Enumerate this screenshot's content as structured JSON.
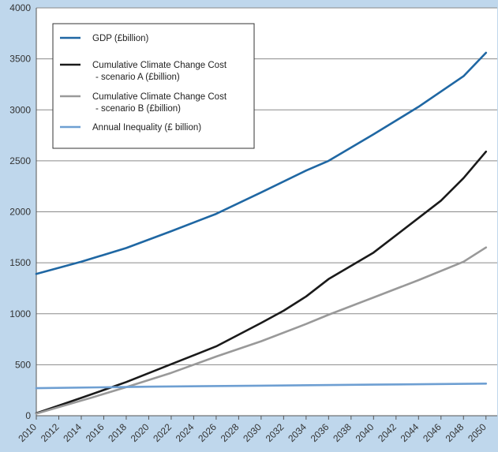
{
  "chart_data": {
    "type": "line",
    "title": "",
    "xlabel": "",
    "ylabel": "",
    "xlim": [
      2010,
      2051
    ],
    "ylim": [
      0,
      4000
    ],
    "x_ticks": [
      "2010",
      "2012",
      "2014",
      "2016",
      "2018",
      "2020",
      "2022",
      "2024",
      "2026",
      "2028",
      "2030",
      "2032",
      "2034",
      "2036",
      "2038",
      "2040",
      "2042",
      "2044",
      "2046",
      "2048",
      "2050"
    ],
    "y_ticks": [
      "0",
      "500",
      "1000",
      "1500",
      "2000",
      "2500",
      "3000",
      "3500",
      "4000"
    ],
    "grid": "horizontal",
    "legend_position": "top-left",
    "background_color": "#bfd7ec",
    "plot_background_color": "#ffffff",
    "series": [
      {
        "name": "GDP (£billion)",
        "color": "#1f67a3",
        "points": [
          [
            2010,
            1390
          ],
          [
            2014,
            1510
          ],
          [
            2018,
            1645
          ],
          [
            2022,
            1810
          ],
          [
            2026,
            1980
          ],
          [
            2030,
            2190
          ],
          [
            2034,
            2405
          ],
          [
            2036,
            2500
          ],
          [
            2040,
            2760
          ],
          [
            2044,
            3030
          ],
          [
            2048,
            3330
          ],
          [
            2050,
            3560
          ]
        ]
      },
      {
        "name": "Cumulative Climate Change Cost\n - scenario A (£billion)",
        "color": "#1a1a1a",
        "points": [
          [
            2010,
            25
          ],
          [
            2014,
            175
          ],
          [
            2018,
            330
          ],
          [
            2022,
            505
          ],
          [
            2026,
            680
          ],
          [
            2030,
            910
          ],
          [
            2032,
            1030
          ],
          [
            2034,
            1170
          ],
          [
            2036,
            1340
          ],
          [
            2040,
            1600
          ],
          [
            2044,
            1940
          ],
          [
            2046,
            2110
          ],
          [
            2048,
            2330
          ],
          [
            2050,
            2590
          ]
        ]
      },
      {
        "name": "Cumulative Climate Change Cost\n - scenario B (£billion)",
        "color": "#999999",
        "points": [
          [
            2010,
            20
          ],
          [
            2015,
            180
          ],
          [
            2018,
            280
          ],
          [
            2022,
            420
          ],
          [
            2026,
            580
          ],
          [
            2030,
            730
          ],
          [
            2034,
            900
          ],
          [
            2036,
            990
          ],
          [
            2040,
            1160
          ],
          [
            2044,
            1330
          ],
          [
            2048,
            1510
          ],
          [
            2050,
            1650
          ]
        ]
      },
      {
        "name": "Annual Inequality (£ billion)",
        "color": "#6e9fd2",
        "points": [
          [
            2010,
            270
          ],
          [
            2020,
            285
          ],
          [
            2030,
            295
          ],
          [
            2040,
            305
          ],
          [
            2050,
            315
          ]
        ]
      }
    ]
  }
}
